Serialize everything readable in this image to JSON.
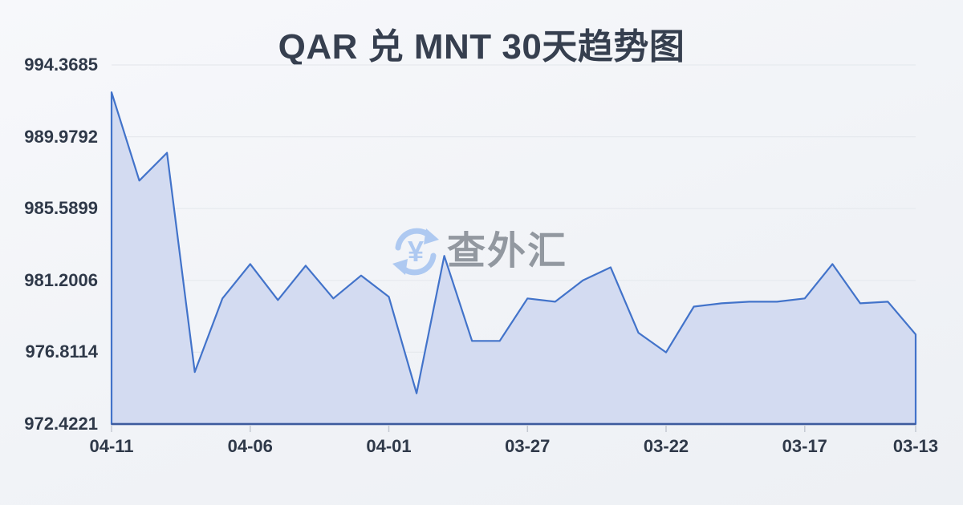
{
  "page": {
    "title": "QAR 兑 MNT 30天趋势图"
  },
  "watermark": {
    "text": "查外汇",
    "currency_symbol": "¥"
  },
  "chart_data": {
    "type": "area",
    "title": "QAR 兑 MNT 30天趋势图",
    "x": [
      "04-11",
      "04-10",
      "04-09",
      "04-08",
      "04-07",
      "04-06",
      "04-05",
      "04-04",
      "04-03",
      "04-02",
      "04-01",
      "03-31",
      "03-30",
      "03-29",
      "03-28",
      "03-27",
      "03-26",
      "03-25",
      "03-24",
      "03-23",
      "03-22",
      "03-21",
      "03-20",
      "03-19",
      "03-18",
      "03-17",
      "03-16",
      "03-15",
      "03-14",
      "03-13"
    ],
    "values": [
      992.7,
      987.3,
      989.0,
      975.6,
      980.1,
      982.2,
      980.0,
      982.1,
      980.1,
      981.5,
      980.2,
      974.3,
      982.7,
      977.5,
      977.5,
      980.1,
      979.9,
      981.2,
      982.0,
      978.0,
      976.8,
      979.6,
      979.8,
      979.9,
      979.9,
      980.1,
      982.2,
      979.8,
      979.9,
      977.9
    ],
    "x_tick_labels": [
      "04-11",
      "04-06",
      "04-01",
      "03-27",
      "03-22",
      "03-17",
      "03-13"
    ],
    "x_tick_indices": [
      0,
      5,
      10,
      15,
      20,
      25,
      29
    ],
    "y_tick_labels": [
      "994.3685",
      "989.9792",
      "985.5899",
      "981.2006",
      "976.8114",
      "972.4221"
    ],
    "ylim": [
      972.4221,
      994.3685
    ],
    "xlabel": "",
    "ylabel": "",
    "grid": true,
    "legend_position": "none",
    "colors": {
      "line": "#4273ca",
      "fill": "#d3dbf1",
      "axis_line": "#3d5a9d",
      "tick": "#c4c9d2",
      "gridline": "#e6e9ee",
      "label": "#2f3949",
      "title": "#363f4f",
      "watermark_text": "#8b9199",
      "watermark_icon": "#a9c6f1"
    }
  }
}
